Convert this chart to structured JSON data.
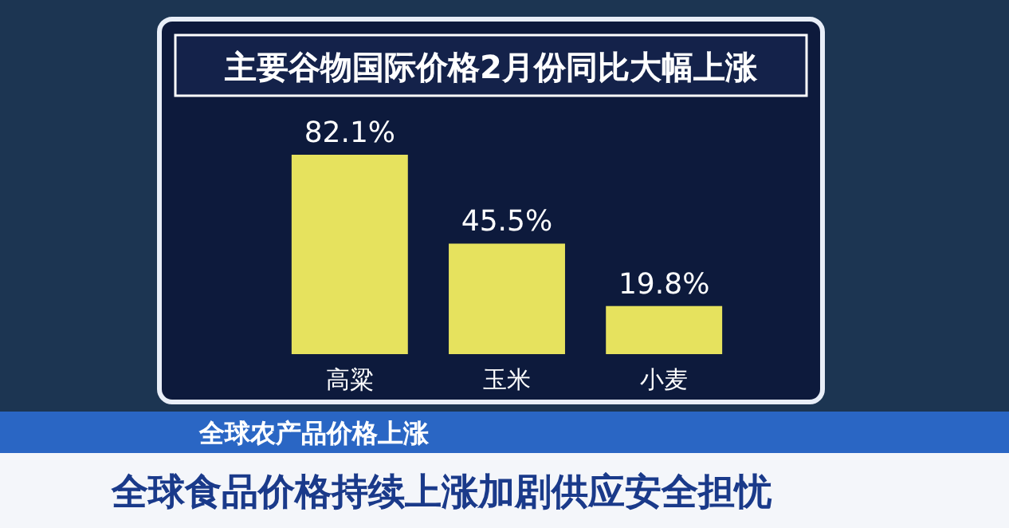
{
  "chart_data": {
    "type": "bar",
    "title": "主要谷物国际价格2月份同比大幅上涨",
    "categories": [
      "高粱",
      "玉米",
      "小麦"
    ],
    "values": [
      82.1,
      45.5,
      19.8
    ],
    "value_labels": [
      "82.1%",
      "45.5%",
      "19.8%"
    ],
    "color": "#e6e25e",
    "annotations": [
      "全球农产品价格上涨",
      "全球食品价格持续上涨加剧供应安全担忧"
    ]
  }
}
